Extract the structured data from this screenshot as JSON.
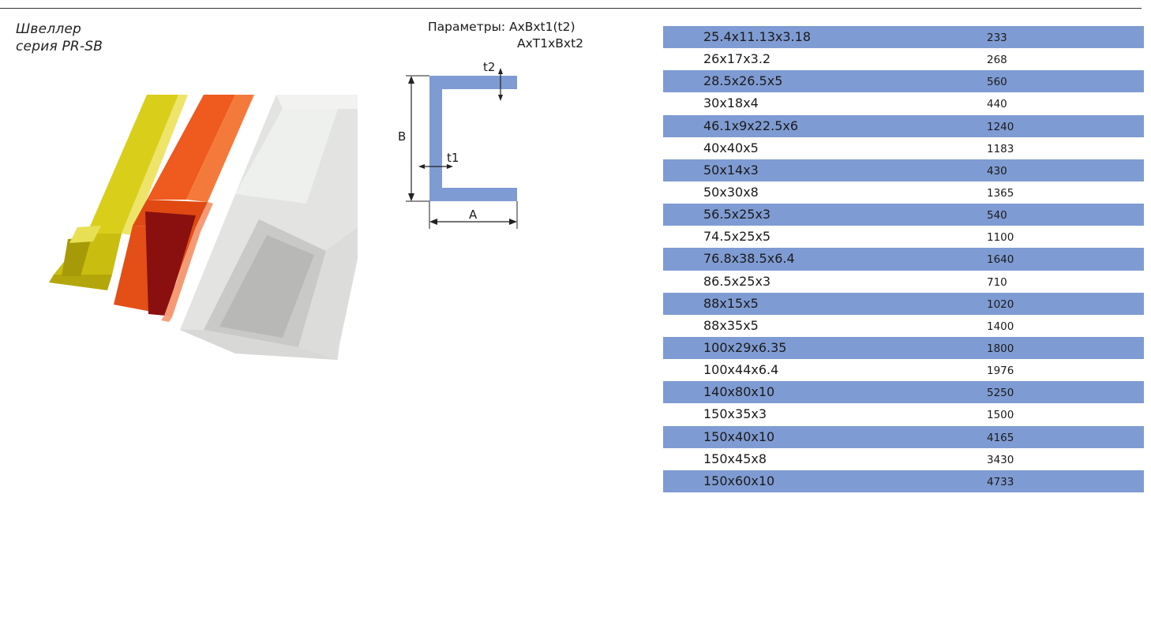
{
  "series": {
    "line1": "Швеллер",
    "line2": "серия PR-SB"
  },
  "params": {
    "line1": "Параметры: AxBxt1(t2)",
    "line2": "AxT1xBxt2"
  },
  "diagram": {
    "label_t2": "t2",
    "label_b": "B",
    "label_t1": "t1",
    "label_a": "A",
    "profile_color": "#7f9bd3"
  },
  "colors": {
    "row_shade": "#7f9bd3"
  },
  "table": {
    "rows": [
      {
        "size": "25.4x11.13x3.18",
        "value": "233"
      },
      {
        "size": "26x17x3.2",
        "value": "268"
      },
      {
        "size": "28.5x26.5x5",
        "value": "560"
      },
      {
        "size": "30x18x4",
        "value": "440"
      },
      {
        "size": "46.1x9x22.5x6",
        "value": "1240"
      },
      {
        "size": "40x40x5",
        "value": "1183"
      },
      {
        "size": "50x14x3",
        "value": "430"
      },
      {
        "size": "50x30x8",
        "value": "1365"
      },
      {
        "size": "56.5x25x3",
        "value": "540"
      },
      {
        "size": "74.5x25x5",
        "value": "1100"
      },
      {
        "size": "76.8x38.5x6.4",
        "value": "1640"
      },
      {
        "size": "86.5x25x3",
        "value": "710"
      },
      {
        "size": "88x15x5",
        "value": "1020"
      },
      {
        "size": "88x35x5",
        "value": "1400"
      },
      {
        "size": "100x29x6.35",
        "value": "1800"
      },
      {
        "size": "100x44x6.4",
        "value": "1976"
      },
      {
        "size": "140x80x10",
        "value": "5250"
      },
      {
        "size": "150x35x3",
        "value": "1500"
      },
      {
        "size": "150x40x10",
        "value": "4165"
      },
      {
        "size": "150x45x8",
        "value": "3430"
      },
      {
        "size": "150x60x10",
        "value": "4733"
      }
    ]
  }
}
